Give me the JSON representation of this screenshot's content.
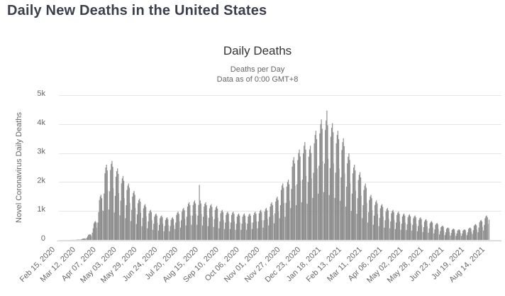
{
  "page": {
    "title": "Daily New Deaths in the United States"
  },
  "chart": {
    "title": "Daily Deaths",
    "subtitle1": "Deaths per Day",
    "subtitle2": "Data as of 0:00 GMT+8",
    "y_axis_title": "Novel Coronavirus Daily Deaths"
  },
  "chart_data": {
    "type": "bar",
    "title": "Daily Deaths",
    "subtitle": [
      "Deaths per Day",
      "Data as of 0:00 GMT+8"
    ],
    "xlabel": "",
    "ylabel": "Novel Coronavirus Daily Deaths",
    "ylim": [
      0,
      5000
    ],
    "grid": true,
    "legend": false,
    "yticks": {
      "values": [
        0,
        1000,
        2000,
        3000,
        4000,
        5000
      ],
      "labels": [
        "0",
        "1k",
        "2k",
        "3k",
        "4k",
        "5k"
      ]
    },
    "xticks": {
      "day_index": [
        0,
        26,
        52,
        78,
        104,
        130,
        156,
        182,
        208,
        234,
        260,
        286,
        312,
        338,
        364,
        390,
        416,
        442,
        468,
        494,
        520,
        546
      ],
      "labels": [
        "Feb 15, 2020",
        "Mar 12, 2020",
        "Apr 07, 2020",
        "May 03, 2020",
        "May 29, 2020",
        "Jun 24, 2020",
        "Jul 20, 2020",
        "Aug 15, 2020",
        "Sep 10, 2020",
        "Oct 06, 2020",
        "Nov 01, 2020",
        "Nov 27, 2020",
        "Dec 23, 2020",
        "Jan 18, 2021",
        "Feb 13, 2021",
        "Mar 11, 2021",
        "Apr 06, 2021",
        "May 02, 2021",
        "May 28, 2021",
        "Jun 23, 2021",
        "Jul 19, 2021",
        "Aug 14, 2021"
      ]
    },
    "colors": {
      "bar": "#8e8e8e",
      "grid": "#e6e6e6",
      "axis_line": "#ccd6eb",
      "tick_label": "#666666",
      "title": "#333333",
      "subtitle": "#666666"
    },
    "series": [
      {
        "name": "Daily Deaths",
        "frequency": "daily",
        "start_date": "Feb 15, 2020",
        "end_date": "Aug 14, 2021",
        "values": [
          0,
          0,
          0,
          0,
          0,
          0,
          0,
          1,
          1,
          1,
          1,
          1,
          1,
          1,
          2,
          2,
          3,
          4,
          4,
          4,
          3,
          5,
          8,
          12,
          13,
          13,
          12,
          9,
          20,
          32,
          46,
          50,
          52,
          48,
          34,
          75,
          120,
          173,
          188,
          195,
          180,
          128,
          250,
          400,
          575,
          625,
          650,
          600,
          425,
          600,
          960,
          1380,
          1500,
          1560,
          1440,
          1020,
          1000,
          1600,
          2300,
          2500,
          2600,
          2400,
          1700,
          1050,
          1680,
          2415,
          2625,
          2730,
          2520,
          1785,
          950,
          1520,
          2185,
          2375,
          2470,
          2280,
          1615,
          850,
          1360,
          1955,
          2125,
          2210,
          2040,
          1445,
          750,
          1200,
          1725,
          1875,
          1950,
          1800,
          1275,
          650,
          1040,
          1495,
          1625,
          1690,
          1560,
          1105,
          550,
          880,
          1265,
          1375,
          1430,
          1320,
          935,
          475,
          760,
          1093,
          1188,
          1235,
          1140,
          808,
          400,
          640,
          920,
          1000,
          1040,
          960,
          680,
          350,
          560,
          805,
          875,
          910,
          840,
          595,
          325,
          520,
          748,
          813,
          845,
          780,
          553,
          300,
          480,
          690,
          750,
          780,
          720,
          510,
          300,
          480,
          690,
          750,
          780,
          720,
          510,
          375,
          600,
          863,
          938,
          975,
          900,
          638,
          425,
          680,
          978,
          1063,
          1105,
          1020,
          723,
          500,
          800,
          1150,
          1250,
          1300,
          1200,
          850,
          525,
          840,
          1208,
          1313,
          1365,
          1260,
          893,
          525,
          840,
          1208,
          1900,
          1365,
          1260,
          893,
          500,
          800,
          1150,
          1250,
          1300,
          1200,
          850,
          475,
          760,
          1093,
          1188,
          1235,
          1140,
          808,
          450,
          720,
          1035,
          1125,
          1170,
          1080,
          765,
          400,
          640,
          920,
          1000,
          1040,
          960,
          680,
          375,
          600,
          863,
          938,
          975,
          900,
          638,
          375,
          600,
          863,
          938,
          975,
          900,
          638,
          350,
          560,
          805,
          875,
          910,
          840,
          595,
          350,
          560,
          805,
          875,
          910,
          840,
          595,
          350,
          560,
          805,
          875,
          910,
          840,
          595,
          375,
          600,
          863,
          938,
          975,
          900,
          638,
          400,
          640,
          920,
          1000,
          1040,
          960,
          680,
          425,
          680,
          978,
          1063,
          1105,
          1020,
          723,
          500,
          800,
          1150,
          1250,
          1300,
          1200,
          850,
          575,
          920,
          1323,
          1438,
          1495,
          1380,
          978,
          750,
          1200,
          1725,
          1875,
          1950,
          1800,
          1275,
          800,
          1280,
          1840,
          2000,
          2080,
          1920,
          1360,
          1100,
          1760,
          2530,
          2750,
          2860,
          2640,
          1870,
          1200,
          1920,
          2760,
          3000,
          3120,
          2880,
          2040,
          1300,
          2080,
          2990,
          3250,
          3380,
          3120,
          2210,
          1250,
          2000,
          2875,
          3125,
          3250,
          3000,
          2125,
          1450,
          2320,
          3335,
          3625,
          3770,
          3480,
          2465,
          1600,
          2560,
          3680,
          4000,
          4160,
          3840,
          2720,
          1650,
          2640,
          3795,
          4125,
          4466,
          3960,
          2805,
          1550,
          2480,
          3565,
          3875,
          4030,
          3720,
          2635,
          1450,
          2320,
          3335,
          3625,
          3770,
          3480,
          2465,
          1350,
          2160,
          3105,
          3375,
          3510,
          3240,
          2295,
          1150,
          1840,
          2645,
          2875,
          2990,
          2760,
          1955,
          1000,
          1600,
          2300,
          2500,
          2600,
          2400,
          1700,
          900,
          1440,
          2070,
          2250,
          2340,
          2160,
          1530,
          750,
          1200,
          1725,
          1875,
          1950,
          1800,
          1275,
          600,
          960,
          1380,
          1500,
          1560,
          1440,
          1020,
          525,
          840,
          1208,
          1313,
          1365,
          1260,
          893,
          475,
          760,
          1093,
          1188,
          1235,
          1140,
          808,
          425,
          680,
          978,
          1063,
          1105,
          1020,
          723,
          400,
          640,
          920,
          1000,
          1040,
          960,
          680,
          375,
          600,
          863,
          938,
          975,
          900,
          638,
          350,
          560,
          805,
          875,
          910,
          840,
          595,
          340,
          544,
          782,
          850,
          884,
          816,
          578,
          325,
          520,
          748,
          813,
          845,
          780,
          553,
          300,
          480,
          690,
          750,
          780,
          720,
          510,
          275,
          440,
          633,
          688,
          715,
          660,
          468,
          250,
          400,
          575,
          625,
          650,
          600,
          425,
          225,
          360,
          518,
          563,
          585,
          540,
          383,
          190,
          304,
          437,
          475,
          494,
          456,
          323,
          165,
          264,
          380,
          413,
          429,
          396,
          281,
          150,
          240,
          345,
          375,
          390,
          360,
          255,
          140,
          224,
          322,
          350,
          364,
          336,
          238,
          140,
          224,
          322,
          350,
          364,
          336,
          238,
          165,
          264,
          380,
          413,
          429,
          396,
          281,
          210,
          336,
          483,
          525,
          546,
          504,
          357,
          265,
          424,
          610,
          663,
          689,
          636,
          451,
          325,
          520,
          748,
          813,
          845,
          780,
          553,
          700
        ]
      }
    ]
  }
}
